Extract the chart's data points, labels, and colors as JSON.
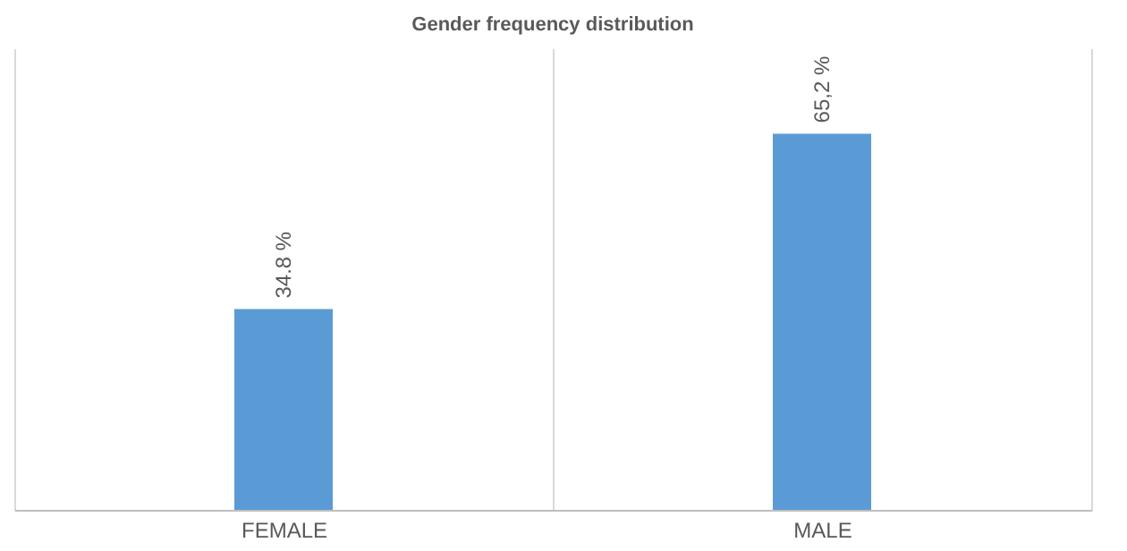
{
  "chart_data": {
    "type": "bar",
    "title": "Gender frequency distribution",
    "categories": [
      "FEMALE",
      "MALE"
    ],
    "values": [
      34.8,
      65.2
    ],
    "value_labels": [
      "34.8 %",
      "65,2 %"
    ],
    "color": "#5b9bd5",
    "ylim": [
      0,
      80
    ],
    "tick_labels": "x",
    "grid": "x"
  }
}
